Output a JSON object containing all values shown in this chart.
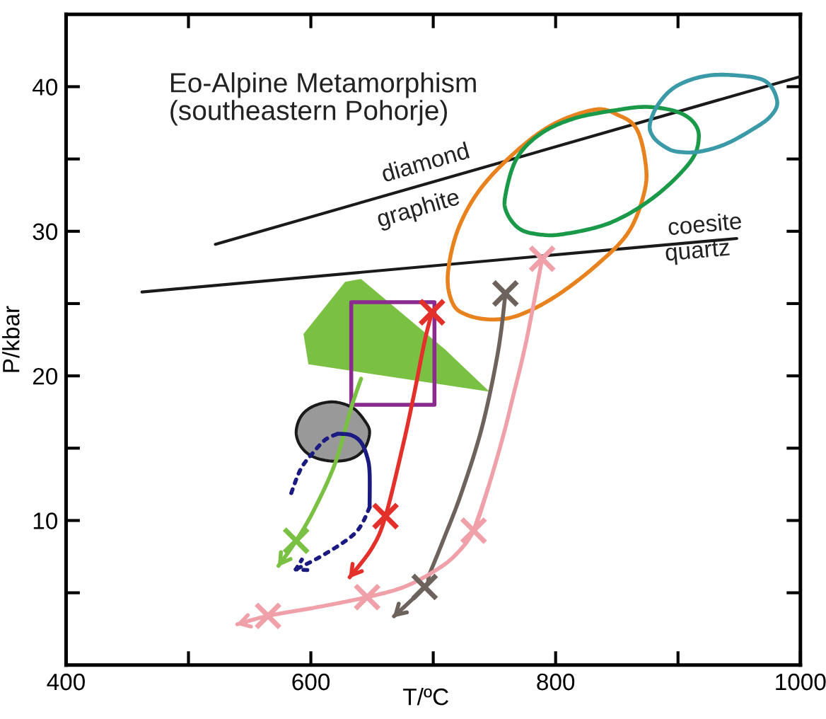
{
  "chart_data": {
    "type": "line",
    "title": "Eo-Alpine Metamorphism\n(southeastern Pohorje)",
    "xlabel": "T/ºC",
    "ylabel": "P/kbar",
    "xlim": [
      400,
      1000
    ],
    "ylim": [
      0,
      45
    ],
    "xticks": [
      400,
      {
        "value": 500,
        "label": null
      },
      600,
      {
        "value": 700,
        "label": null
      },
      800,
      {
        "value": 900,
        "label": null
      },
      1000
    ],
    "yticks": [
      {
        "value": 5,
        "label": null
      },
      10,
      {
        "value": 15,
        "label": null
      },
      20,
      {
        "value": 25,
        "label": null
      },
      30,
      {
        "value": 35,
        "label": null
      },
      40
    ],
    "grid": false,
    "legend": false,
    "annotations": [
      "diamond",
      "graphite",
      "coesite",
      "quartz"
    ],
    "series": [
      {
        "color": "#1a1a1a",
        "x": [
          522,
          1000
        ],
        "values": [
          29.1,
          40.7
        ]
      },
      {
        "color": "#1a1a1a",
        "x": [
          462,
          948
        ],
        "values": [
          25.8,
          29.5
        ]
      },
      {
        "type": "scatter",
        "marker": "cross",
        "color": "#7ac143",
        "x": [
          588
        ],
        "values": [
          8.6
        ]
      },
      {
        "type": "scatter",
        "marker": "cross",
        "color": "#e3302a",
        "x": [
          699,
          661
        ],
        "values": [
          24.4,
          10.3
        ]
      },
      {
        "type": "scatter",
        "marker": "cross",
        "color": "#6d625c",
        "x": [
          759,
          693
        ],
        "values": [
          25.7,
          5.4
        ]
      },
      {
        "type": "scatter",
        "marker": "cross",
        "color": "#f0a0a8",
        "x": [
          789,
          733,
          646,
          565
        ],
        "values": [
          28.1,
          9.3,
          4.7,
          3.4
        ]
      }
    ]
  }
}
